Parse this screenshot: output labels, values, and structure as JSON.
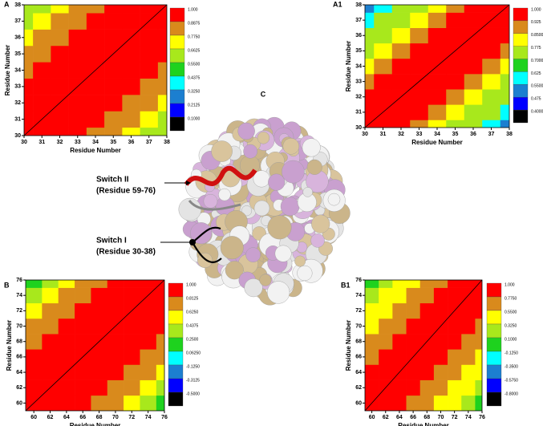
{
  "chart_data": [
    {
      "type": "heatmap",
      "panel_label": "A",
      "x_label": "Residue Number",
      "y_label": "Residue Number",
      "x": [
        30,
        31,
        32,
        33,
        34,
        35,
        36,
        37,
        38
      ],
      "y": [
        30,
        31,
        32,
        33,
        34,
        35,
        36,
        37,
        38
      ],
      "xlim": [
        30,
        38
      ],
      "ylim": [
        30,
        38
      ],
      "xticks": [
        30,
        31,
        32,
        33,
        34,
        35,
        36,
        37,
        38
      ],
      "yticks": [
        30,
        31,
        32,
        33,
        34,
        35,
        36,
        37,
        38
      ],
      "values": [
        [
          1,
          0.97,
          0.93,
          0.9,
          0.86,
          0.8,
          0.74,
          0.66,
          0.55
        ],
        [
          0.97,
          1,
          0.97,
          0.93,
          0.9,
          0.86,
          0.8,
          0.74,
          0.66
        ],
        [
          0.93,
          0.97,
          1,
          0.97,
          0.93,
          0.9,
          0.86,
          0.8,
          0.74
        ],
        [
          0.9,
          0.93,
          0.97,
          1,
          0.97,
          0.93,
          0.9,
          0.86,
          0.8
        ],
        [
          0.86,
          0.9,
          0.93,
          0.97,
          1,
          0.97,
          0.93,
          0.9,
          0.86
        ],
        [
          0.8,
          0.86,
          0.9,
          0.93,
          0.97,
          1,
          0.97,
          0.93,
          0.9
        ],
        [
          0.74,
          0.8,
          0.86,
          0.9,
          0.93,
          0.97,
          1,
          0.97,
          0.93
        ],
        [
          0.66,
          0.74,
          0.8,
          0.86,
          0.9,
          0.93,
          0.97,
          1,
          0.97
        ],
        [
          0.55,
          0.66,
          0.74,
          0.8,
          0.86,
          0.9,
          0.93,
          0.97,
          1
        ]
      ],
      "levels": [
        {
          "value": 1,
          "label": "1.000"
        },
        0.8875,
        {
          "value": 0.775,
          "label": "0.7750"
        },
        0.6625,
        {
          "value": 0.55,
          "label": "0.5500"
        },
        0.4375,
        {
          "value": 0.325,
          "label": "0.3250"
        },
        0.2125,
        {
          "value": 0.1,
          "label": "0.1000"
        }
      ],
      "colors": [
        "#ff0000",
        "#d98a1c",
        "#ffff00",
        "#a8e81c",
        "#1ed21e",
        "#00ffff",
        "#1c7fd0",
        "#0000ff",
        "#000000"
      ]
    },
    {
      "type": "heatmap",
      "panel_label": "A1",
      "x_label": "Residue Number",
      "y_label": "Residue Number",
      "x": [
        30,
        31,
        32,
        33,
        34,
        35,
        36,
        37,
        38
      ],
      "y": [
        30,
        31,
        32,
        33,
        34,
        35,
        36,
        37,
        38
      ],
      "xlim": [
        30,
        38
      ],
      "ylim": [
        30,
        38
      ],
      "xticks": [
        30,
        31,
        32,
        33,
        34,
        35,
        36,
        37,
        38
      ],
      "yticks": [
        30,
        31,
        32,
        33,
        34,
        35,
        36,
        37,
        38
      ],
      "values": [
        [
          1,
          0.97,
          0.93,
          0.88,
          0.83,
          0.77,
          0.7,
          0.6,
          0.5
        ],
        [
          0.97,
          1,
          0.97,
          0.93,
          0.88,
          0.83,
          0.77,
          0.7,
          0.6
        ],
        [
          0.93,
          0.97,
          1,
          0.97,
          0.93,
          0.88,
          0.83,
          0.77,
          0.7
        ],
        [
          0.88,
          0.93,
          0.97,
          1,
          0.97,
          0.93,
          0.88,
          0.83,
          0.77
        ],
        [
          0.83,
          0.88,
          0.93,
          0.97,
          1,
          0.97,
          0.93,
          0.88,
          0.83
        ],
        [
          0.77,
          0.83,
          0.88,
          0.93,
          0.97,
          1,
          0.97,
          0.93,
          0.88
        ],
        [
          0.7,
          0.77,
          0.83,
          0.88,
          0.93,
          0.97,
          1,
          0.97,
          0.93
        ],
        [
          0.6,
          0.7,
          0.77,
          0.83,
          0.88,
          0.93,
          0.97,
          1,
          0.97
        ],
        [
          0.5,
          0.6,
          0.7,
          0.77,
          0.83,
          0.88,
          0.93,
          0.97,
          1
        ]
      ],
      "levels": [
        {
          "value": 1,
          "label": "1.000"
        },
        0.925,
        {
          "value": 0.85,
          "label": "0.8500"
        },
        0.775,
        {
          "value": 0.7,
          "label": "0.7000"
        },
        0.625,
        {
          "value": 0.55,
          "label": "0.5500"
        },
        0.475,
        {
          "value": 0.4,
          "label": "0.4000"
        }
      ],
      "colors": [
        "#ff0000",
        "#d98a1c",
        "#ffff00",
        "#a8e81c",
        "#1ed21e",
        "#00ffff",
        "#1c7fd0",
        "#0000ff",
        "#000000"
      ]
    },
    {
      "type": "heatmap",
      "panel_label": "B",
      "x_label": "Residue Number",
      "y_label": "Residue Number",
      "x": [
        60,
        62,
        64,
        66,
        68,
        70,
        72,
        74,
        76
      ],
      "y": [
        60,
        62,
        64,
        66,
        68,
        70,
        72,
        74,
        76
      ],
      "xlim": [
        59,
        76
      ],
      "ylim": [
        59,
        76
      ],
      "xticks": [
        60,
        62,
        64,
        66,
        68,
        70,
        72,
        74,
        76
      ],
      "yticks": [
        60,
        62,
        64,
        66,
        68,
        70,
        72,
        74,
        76
      ],
      "values": [
        [
          1,
          0.9,
          0.85,
          0.82,
          0.8,
          0.7,
          0.55,
          0.4,
          0.2
        ],
        [
          0.9,
          1,
          0.9,
          0.85,
          0.82,
          0.8,
          0.7,
          0.55,
          0.4
        ],
        [
          0.85,
          0.9,
          1,
          0.9,
          0.85,
          0.82,
          0.8,
          0.7,
          0.55
        ],
        [
          0.82,
          0.85,
          0.9,
          1,
          0.9,
          0.85,
          0.82,
          0.8,
          0.7
        ],
        [
          0.8,
          0.82,
          0.85,
          0.9,
          1,
          0.9,
          0.85,
          0.82,
          0.8
        ],
        [
          0.7,
          0.8,
          0.82,
          0.85,
          0.9,
          1,
          0.9,
          0.85,
          0.82
        ],
        [
          0.55,
          0.7,
          0.8,
          0.82,
          0.85,
          0.9,
          1,
          0.9,
          0.85
        ],
        [
          0.4,
          0.55,
          0.7,
          0.8,
          0.82,
          0.85,
          0.9,
          1,
          0.9
        ],
        [
          0.2,
          0.4,
          0.55,
          0.7,
          0.8,
          0.82,
          0.85,
          0.9,
          1
        ]
      ],
      "levels": [
        {
          "value": 1,
          "label": "1.000"
        },
        0.8125,
        {
          "value": 0.625,
          "label": "0.6250"
        },
        0.4375,
        {
          "value": 0.25,
          "label": "0.2500"
        },
        {
          "value": 0.0625,
          "label": "0.06250"
        },
        {
          "value": -0.125,
          "label": "-0.1250"
        },
        -0.3125,
        {
          "value": -0.5,
          "label": "-0.5000"
        }
      ],
      "colors": [
        "#ff0000",
        "#d98a1c",
        "#ffff00",
        "#a8e81c",
        "#1ed21e",
        "#00ffff",
        "#1c7fd0",
        "#0000ff",
        "#000000"
      ]
    },
    {
      "type": "heatmap",
      "panel_label": "B1",
      "x_label": "Residue Number",
      "y_label": "Residue Number",
      "x": [
        60,
        62,
        64,
        66,
        68,
        70,
        72,
        74,
        76
      ],
      "y": [
        60,
        62,
        64,
        66,
        68,
        70,
        72,
        74,
        76
      ],
      "xlim": [
        59,
        76
      ],
      "ylim": [
        59,
        76
      ],
      "xticks": [
        60,
        62,
        64,
        66,
        68,
        70,
        72,
        74,
        76
      ],
      "yticks": [
        60,
        62,
        64,
        66,
        68,
        70,
        72,
        74,
        76
      ],
      "values": [
        [
          1,
          0.85,
          0.78,
          0.7,
          0.65,
          0.5,
          0.35,
          0.2,
          0.05
        ],
        [
          0.85,
          1,
          0.85,
          0.78,
          0.7,
          0.65,
          0.5,
          0.35,
          0.2
        ],
        [
          0.78,
          0.85,
          1,
          0.85,
          0.78,
          0.7,
          0.65,
          0.5,
          0.35
        ],
        [
          0.7,
          0.78,
          0.85,
          1,
          0.85,
          0.78,
          0.7,
          0.65,
          0.5
        ],
        [
          0.65,
          0.7,
          0.78,
          0.85,
          1,
          0.85,
          0.78,
          0.7,
          0.65
        ],
        [
          0.5,
          0.65,
          0.7,
          0.78,
          0.85,
          1,
          0.85,
          0.78,
          0.7
        ],
        [
          0.35,
          0.5,
          0.65,
          0.7,
          0.78,
          0.85,
          1,
          0.85,
          0.78
        ],
        [
          0.2,
          0.35,
          0.5,
          0.65,
          0.7,
          0.78,
          0.85,
          1,
          0.85
        ],
        [
          0.05,
          0.2,
          0.35,
          0.5,
          0.65,
          0.7,
          0.78,
          0.85,
          1
        ]
      ],
      "levels": [
        {
          "value": 1,
          "label": "1.000"
        },
        {
          "value": 0.775,
          "label": "0.7750"
        },
        {
          "value": 0.55,
          "label": "0.5500"
        },
        {
          "value": 0.325,
          "label": "0.3250"
        },
        {
          "value": 0.1,
          "label": "0.1000"
        },
        {
          "value": -0.125,
          "label": "-0.1250"
        },
        {
          "value": -0.35,
          "label": "-0.3500"
        },
        {
          "value": -0.575,
          "label": "-0.5750"
        },
        {
          "value": -0.8,
          "label": "-0.8000"
        }
      ],
      "colors": [
        "#ff0000",
        "#d98a1c",
        "#ffff00",
        "#a8e81c",
        "#1ed21e",
        "#00ffff",
        "#1c7fd0",
        "#0000ff",
        "#000000"
      ]
    }
  ],
  "structure": {
    "label": "C",
    "annotations": [
      {
        "name": "Switch II",
        "range": "(Residue 59-76)"
      },
      {
        "name": "Switch I",
        "range": "(Residue 30-38)"
      }
    ]
  }
}
